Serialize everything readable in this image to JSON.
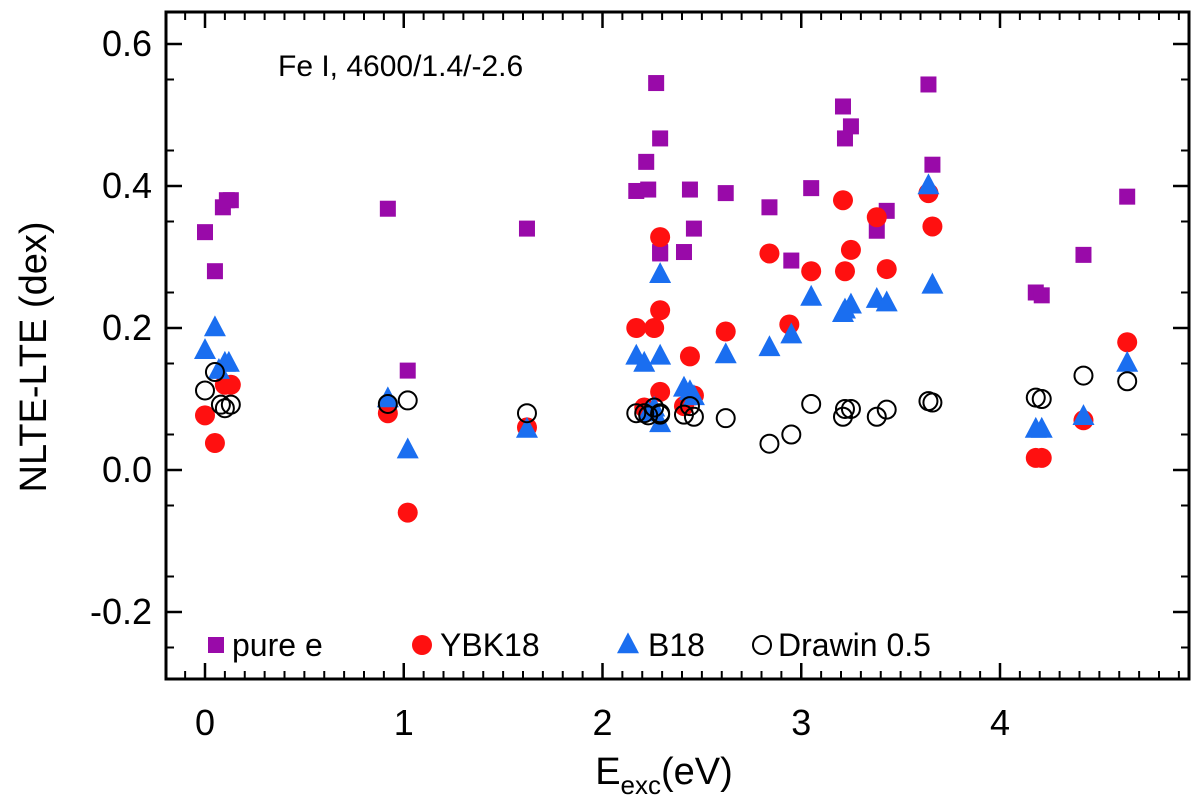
{
  "chart_data": {
    "type": "scatter",
    "title": "",
    "annotation": "Fe I, 4600/1.4/-2.6",
    "xlabel": "E",
    "xlabel_sub": "exc",
    "xlabel_unit": "(eV)",
    "ylabel": "NLTE-LTE (dex)",
    "xlim": [
      -0.2,
      4.9
    ],
    "ylim": [
      -0.3,
      0.65
    ],
    "xticks": [
      0,
      1,
      2,
      3,
      4
    ],
    "xtick_labels": [
      "0",
      "1",
      "2",
      "3",
      "4"
    ],
    "yticks": [
      -0.2,
      0.0,
      0.2,
      0.4,
      0.6
    ],
    "ytick_labels": [
      "-0.2",
      "0.0",
      "0.2",
      "0.4",
      "0.6"
    ],
    "grid": false,
    "legend_position": "bottom",
    "series": [
      {
        "name": "pure e",
        "marker": "square",
        "color": "#990aa9",
        "x": [
          0.0,
          0.05,
          0.09,
          0.11,
          0.13,
          0.92,
          1.02,
          1.62,
          2.17,
          2.22,
          2.23,
          2.27,
          2.29,
          2.29,
          2.29,
          2.41,
          2.44,
          2.46,
          2.62,
          2.84,
          2.95,
          3.05,
          3.21,
          3.22,
          3.25,
          3.38,
          3.43,
          3.64,
          3.66,
          4.18,
          4.21,
          4.42,
          4.64
        ],
        "y": [
          0.335,
          0.28,
          0.37,
          0.38,
          0.38,
          0.368,
          0.14,
          0.34,
          0.393,
          0.434,
          0.395,
          0.545,
          0.467,
          0.305,
          0.307,
          0.307,
          0.395,
          0.34,
          0.39,
          0.37,
          0.295,
          0.397,
          0.512,
          0.467,
          0.484,
          0.337,
          0.365,
          0.543,
          0.43,
          0.25,
          0.246,
          0.303,
          0.385
        ]
      },
      {
        "name": "YBK18",
        "marker": "circle",
        "color": "#ff1010",
        "x": [
          0.0,
          0.05,
          0.1,
          0.13,
          0.92,
          1.02,
          1.62,
          2.17,
          2.21,
          2.23,
          2.26,
          2.29,
          2.29,
          2.29,
          2.41,
          2.44,
          2.46,
          2.62,
          2.84,
          2.94,
          3.05,
          3.21,
          3.22,
          3.25,
          3.38,
          3.43,
          3.64,
          3.66,
          4.18,
          4.21,
          4.42,
          4.64
        ],
        "y": [
          0.077,
          0.038,
          0.12,
          0.12,
          0.08,
          -0.06,
          0.06,
          0.2,
          0.088,
          0.083,
          0.2,
          0.328,
          0.225,
          0.11,
          0.09,
          0.16,
          0.105,
          0.195,
          0.305,
          0.205,
          0.28,
          0.38,
          0.28,
          0.31,
          0.356,
          0.283,
          0.39,
          0.343,
          0.017,
          0.017,
          0.07,
          0.18
        ]
      },
      {
        "name": "B18",
        "marker": "triangle",
        "color": "#1a6ef0",
        "x": [
          0.0,
          0.05,
          0.07,
          0.1,
          0.12,
          0.92,
          1.02,
          1.62,
          2.17,
          2.21,
          2.23,
          2.26,
          2.29,
          2.29,
          2.29,
          2.41,
          2.44,
          2.46,
          2.62,
          2.84,
          2.95,
          3.05,
          3.21,
          3.22,
          3.25,
          3.38,
          3.43,
          3.64,
          3.66,
          4.18,
          4.21,
          4.42,
          4.64
        ],
        "y": [
          0.168,
          0.2,
          0.14,
          0.15,
          0.15,
          0.1,
          0.028,
          0.057,
          0.16,
          0.15,
          0.08,
          0.087,
          0.275,
          0.16,
          0.065,
          0.115,
          0.11,
          0.103,
          0.162,
          0.172,
          0.19,
          0.243,
          0.22,
          0.225,
          0.232,
          0.24,
          0.235,
          0.4,
          0.26,
          0.057,
          0.057,
          0.075,
          0.15
        ]
      },
      {
        "name": "Drawin 0.5",
        "marker": "open-circle",
        "color": "#000000",
        "x": [
          0.0,
          0.05,
          0.08,
          0.1,
          0.13,
          0.92,
          1.02,
          1.62,
          2.17,
          2.21,
          2.23,
          2.26,
          2.29,
          2.29,
          2.41,
          2.44,
          2.46,
          2.62,
          2.84,
          2.95,
          3.05,
          3.21,
          3.22,
          3.25,
          3.38,
          3.43,
          3.64,
          3.66,
          4.18,
          4.21,
          4.42,
          4.64
        ],
        "y": [
          0.112,
          0.138,
          0.092,
          0.087,
          0.092,
          0.093,
          0.098,
          0.08,
          0.08,
          0.08,
          0.077,
          0.088,
          0.078,
          0.08,
          0.078,
          0.09,
          0.075,
          0.073,
          0.037,
          0.05,
          0.093,
          0.075,
          0.086,
          0.086,
          0.075,
          0.085,
          0.097,
          0.095,
          0.102,
          0.1,
          0.133,
          0.125
        ]
      }
    ]
  }
}
